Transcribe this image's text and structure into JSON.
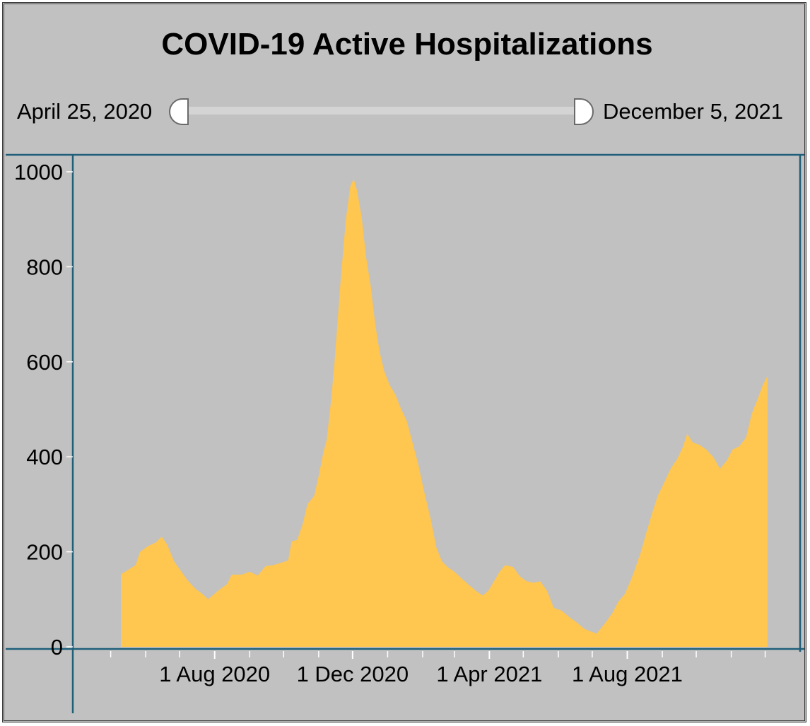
{
  "range_slider": {
    "start_label": "April 25, 2020",
    "end_label": "December 5, 2021"
  },
  "colors": {
    "background": "#c1c1c1",
    "area_fill": "#ffc650",
    "axis": "#1f5f7a"
  },
  "chart_data": {
    "type": "area",
    "title": "COVID-19 Active Hospitalizations",
    "xlabel": "",
    "ylabel": "",
    "ylim": [
      0,
      1000
    ],
    "xlim": [
      "2020-04-25",
      "2021-12-05"
    ],
    "y_ticks": [
      0,
      200,
      400,
      600,
      800,
      1000
    ],
    "x_ticks": [
      {
        "date": "2020-08-01",
        "label": "1 Aug 2020"
      },
      {
        "date": "2020-12-01",
        "label": "1 Dec 2020"
      },
      {
        "date": "2021-04-01",
        "label": "1 Apr 2021"
      },
      {
        "date": "2021-08-01",
        "label": "1 Aug 2021"
      }
    ],
    "x_minor_ticks": [
      "2020-05-01",
      "2020-06-01",
      "2020-07-01",
      "2020-09-01",
      "2020-10-01",
      "2020-11-01",
      "2021-01-01",
      "2021-02-01",
      "2021-03-01",
      "2021-05-01",
      "2021-06-01",
      "2021-07-01",
      "2021-09-01",
      "2021-10-01",
      "2021-11-01",
      "2021-12-01"
    ],
    "grid": false,
    "series": [
      {
        "points": [
          [
            "2020-05-10",
            0
          ],
          [
            "2020-05-10",
            153
          ],
          [
            "2020-05-15",
            160
          ],
          [
            "2020-05-23",
            172
          ],
          [
            "2020-05-27",
            200
          ],
          [
            "2020-06-03",
            212
          ],
          [
            "2020-06-10",
            220
          ],
          [
            "2020-06-15",
            232
          ],
          [
            "2020-06-20",
            215
          ],
          [
            "2020-06-26",
            180
          ],
          [
            "2020-07-02",
            160
          ],
          [
            "2020-07-08",
            140
          ],
          [
            "2020-07-15",
            122
          ],
          [
            "2020-07-22",
            110
          ],
          [
            "2020-07-26",
            100
          ],
          [
            "2020-07-31",
            110
          ],
          [
            "2020-08-05",
            120
          ],
          [
            "2020-08-12",
            132
          ],
          [
            "2020-08-16",
            152
          ],
          [
            "2020-08-25",
            152
          ],
          [
            "2020-09-01",
            158
          ],
          [
            "2020-09-08",
            150
          ],
          [
            "2020-09-15",
            170
          ],
          [
            "2020-09-22",
            172
          ],
          [
            "2020-09-30",
            178
          ],
          [
            "2020-10-05",
            182
          ],
          [
            "2020-10-08",
            222
          ],
          [
            "2020-10-13",
            225
          ],
          [
            "2020-10-18",
            260
          ],
          [
            "2020-10-22",
            300
          ],
          [
            "2020-10-28",
            318
          ],
          [
            "2020-11-01",
            360
          ],
          [
            "2020-11-05",
            408
          ],
          [
            "2020-11-08",
            435
          ],
          [
            "2020-11-12",
            520
          ],
          [
            "2020-11-15",
            600
          ],
          [
            "2020-11-20",
            760
          ],
          [
            "2020-11-25",
            900
          ],
          [
            "2020-11-29",
            970
          ],
          [
            "2020-12-02",
            985
          ],
          [
            "2020-12-05",
            960
          ],
          [
            "2020-12-09",
            905
          ],
          [
            "2020-12-13",
            820
          ],
          [
            "2020-12-17",
            760
          ],
          [
            "2020-12-21",
            680
          ],
          [
            "2020-12-25",
            620
          ],
          [
            "2020-12-29",
            580
          ],
          [
            "2021-01-03",
            550
          ],
          [
            "2021-01-08",
            530
          ],
          [
            "2021-01-13",
            500
          ],
          [
            "2021-01-18",
            475
          ],
          [
            "2021-01-23",
            430
          ],
          [
            "2021-01-28",
            385
          ],
          [
            "2021-02-02",
            330
          ],
          [
            "2021-02-08",
            270
          ],
          [
            "2021-02-13",
            210
          ],
          [
            "2021-02-18",
            180
          ],
          [
            "2021-02-23",
            168
          ],
          [
            "2021-03-01",
            158
          ],
          [
            "2021-03-07",
            145
          ],
          [
            "2021-03-13",
            132
          ],
          [
            "2021-03-20",
            118
          ],
          [
            "2021-03-26",
            108
          ],
          [
            "2021-03-31",
            118
          ],
          [
            "2021-04-05",
            138
          ],
          [
            "2021-04-10",
            158
          ],
          [
            "2021-04-15",
            172
          ],
          [
            "2021-04-22",
            168
          ],
          [
            "2021-04-28",
            148
          ],
          [
            "2021-05-04",
            138
          ],
          [
            "2021-05-10",
            135
          ],
          [
            "2021-05-16",
            138
          ],
          [
            "2021-05-22",
            118
          ],
          [
            "2021-05-28",
            82
          ],
          [
            "2021-06-04",
            76
          ],
          [
            "2021-06-11",
            62
          ],
          [
            "2021-06-18",
            50
          ],
          [
            "2021-06-24",
            38
          ],
          [
            "2021-06-30",
            32
          ],
          [
            "2021-07-05",
            28
          ],
          [
            "2021-07-09",
            40
          ],
          [
            "2021-07-14",
            55
          ],
          [
            "2021-07-19",
            72
          ],
          [
            "2021-07-24",
            95
          ],
          [
            "2021-07-30",
            112
          ],
          [
            "2021-08-04",
            140
          ],
          [
            "2021-08-08",
            165
          ],
          [
            "2021-08-13",
            200
          ],
          [
            "2021-08-18",
            242
          ],
          [
            "2021-08-23",
            282
          ],
          [
            "2021-08-28",
            318
          ],
          [
            "2021-09-03",
            348
          ],
          [
            "2021-09-09",
            378
          ],
          [
            "2021-09-14",
            395
          ],
          [
            "2021-09-19",
            420
          ],
          [
            "2021-09-23",
            448
          ],
          [
            "2021-09-28",
            430
          ],
          [
            "2021-10-04",
            425
          ],
          [
            "2021-10-10",
            415
          ],
          [
            "2021-10-16",
            400
          ],
          [
            "2021-10-22",
            375
          ],
          [
            "2021-10-28",
            392
          ],
          [
            "2021-11-02",
            415
          ],
          [
            "2021-11-08",
            422
          ],
          [
            "2021-11-14",
            440
          ],
          [
            "2021-11-19",
            490
          ],
          [
            "2021-11-24",
            520
          ],
          [
            "2021-11-29",
            552
          ],
          [
            "2021-12-03",
            570
          ],
          [
            "2021-12-03",
            0
          ]
        ]
      }
    ]
  }
}
